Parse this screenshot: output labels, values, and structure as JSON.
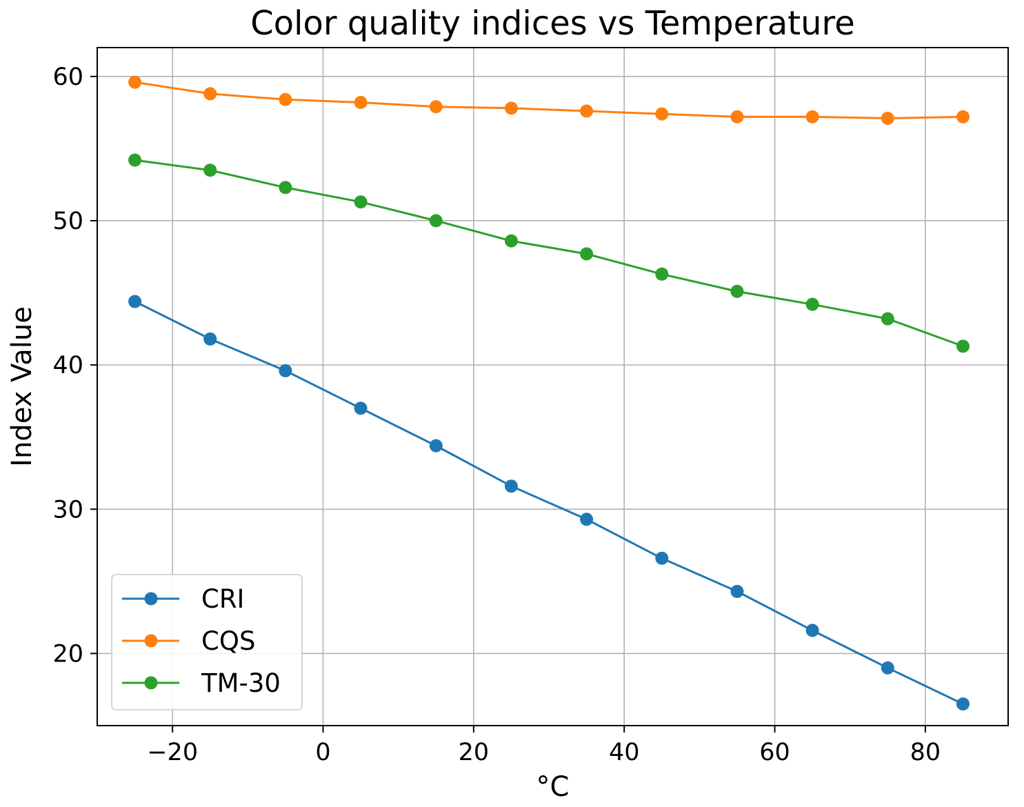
{
  "chart_data": {
    "type": "line",
    "title": "Color quality indices vs Temperature",
    "xlabel": "°C",
    "ylabel": "Index Value",
    "x": [
      -25,
      -15,
      -5,
      5,
      15,
      25,
      35,
      45,
      55,
      65,
      75,
      85
    ],
    "xlim": [
      -30,
      91
    ],
    "ylim": [
      15,
      62
    ],
    "xticks": [
      -20,
      0,
      20,
      40,
      60,
      80
    ],
    "xtick_labels": [
      "−20",
      "0",
      "20",
      "40",
      "60",
      "80"
    ],
    "yticks": [
      20,
      30,
      40,
      50,
      60
    ],
    "ytick_labels": [
      "20",
      "30",
      "40",
      "50",
      "60"
    ],
    "grid": true,
    "legend_position": "lower-left",
    "series": [
      {
        "name": "CRI",
        "color": "#1f77b4",
        "values": [
          44.4,
          41.8,
          39.6,
          37.0,
          34.4,
          31.6,
          29.3,
          26.6,
          24.3,
          21.6,
          19.0,
          16.5
        ]
      },
      {
        "name": "CQS",
        "color": "#ff7f0e",
        "values": [
          59.6,
          58.8,
          58.4,
          58.2,
          57.9,
          57.8,
          57.6,
          57.4,
          57.2,
          57.2,
          57.1,
          57.2
        ]
      },
      {
        "name": "TM-30",
        "color": "#2ca02c",
        "values": [
          54.2,
          53.5,
          52.3,
          51.3,
          50.0,
          48.6,
          47.7,
          46.3,
          45.1,
          44.2,
          43.2,
          41.3
        ]
      }
    ]
  }
}
